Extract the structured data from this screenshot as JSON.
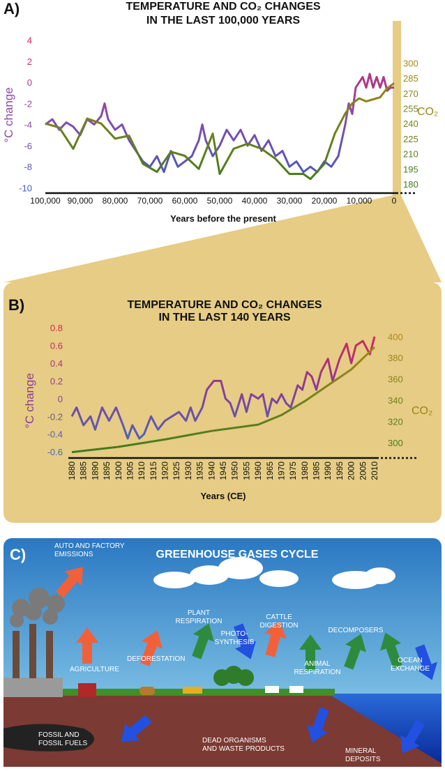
{
  "chart_data": [
    {
      "type": "line",
      "panel": "A)",
      "title": [
        "TEMPERATURE AND CO₂ CHANGES",
        "IN THE LAST 100,000 YEARS"
      ],
      "xlabel": "Years before the present",
      "ylabel": "°C change",
      "y2label": "CO₂",
      "xlim": [
        100000,
        0
      ],
      "ylim": [
        -10.5,
        4.5
      ],
      "y2lim": [
        171,
        328
      ],
      "xticks": [
        {
          "value": 100000,
          "label": "100,000"
        },
        {
          "value": 90000,
          "label": "90,000"
        },
        {
          "value": 80000,
          "label": "80,000"
        },
        {
          "value": 70000,
          "label": "70,000"
        },
        {
          "value": 60000,
          "label": "60,000"
        },
        {
          "value": 50000,
          "label": "50,000"
        },
        {
          "value": 40000,
          "label": "40,000"
        },
        {
          "value": 30000,
          "label": "30,000"
        },
        {
          "value": 20000,
          "label": "20,000"
        },
        {
          "value": 10000,
          "label": "10,000"
        },
        0
      ],
      "yticks": [
        -10,
        -8,
        -6,
        -4,
        -2,
        0,
        2,
        4
      ],
      "y2ticks": [
        180,
        195,
        210,
        225,
        240,
        255,
        270,
        285,
        300
      ],
      "series": [
        {
          "name": "°C change",
          "color": [
            "#3b5cc4",
            "#8a4aa8",
            "#e0205a"
          ],
          "x": [
            100000,
            98000,
            96000,
            94000,
            92000,
            90000,
            88000,
            86000,
            84000,
            83000,
            82000,
            80000,
            78000,
            76000,
            74000,
            72000,
            70000,
            68000,
            66000,
            64000,
            62000,
            60000,
            58000,
            56000,
            55000,
            54000,
            52000,
            50000,
            48000,
            46000,
            44000,
            42000,
            40000,
            38000,
            36000,
            34000,
            32000,
            30000,
            28000,
            26000,
            24000,
            22000,
            20000,
            18000,
            16000,
            14000,
            13000,
            12000,
            11000,
            10000,
            9000,
            8000,
            7000,
            6000,
            5000,
            4000,
            3000,
            2000,
            1000,
            0
          ],
          "values": [
            -4,
            -3.5,
            -4.5,
            -3.8,
            -4.2,
            -5,
            -3.5,
            -4,
            -3.2,
            -2,
            -3.5,
            -4.5,
            -4,
            -5.5,
            -6.5,
            -7.5,
            -8,
            -7,
            -8.5,
            -6.5,
            -8,
            -7.5,
            -7,
            -5.5,
            -4,
            -5.5,
            -7,
            -6,
            -4.5,
            -5.5,
            -4.5,
            -6,
            -5,
            -6.5,
            -5.5,
            -7,
            -6.5,
            -8,
            -7.5,
            -8.5,
            -8,
            -8.5,
            -7.5,
            -8,
            -7,
            -4,
            -2,
            -3,
            -0.5,
            0,
            0.5,
            -0.5,
            0.8,
            -0.5,
            0.5,
            -0.5,
            0.5,
            -0.8,
            -0.5,
            -0.5
          ]
        },
        {
          "name": "CO₂",
          "axis": "y2",
          "color": [
            "#3a7a1e",
            "#c08a1a"
          ],
          "x": [
            100000,
            96000,
            92000,
            88000,
            84000,
            80000,
            76000,
            72000,
            68000,
            64000,
            60000,
            56000,
            52000,
            50000,
            46000,
            42000,
            38000,
            34000,
            30000,
            26000,
            24000,
            20000,
            17000,
            14000,
            12000,
            10000,
            8000,
            6000,
            4000,
            2000,
            0
          ],
          "values": [
            240,
            236,
            215,
            245,
            240,
            225,
            228,
            200,
            192,
            212,
            208,
            195,
            230,
            190,
            215,
            220,
            215,
            205,
            190,
            190,
            185,
            200,
            230,
            250,
            260,
            265,
            262,
            264,
            266,
            275,
            280
          ]
        }
      ]
    },
    {
      "type": "line",
      "panel": "B)",
      "title": [
        "TEMPERATURE AND CO₂ CHANGES",
        "IN THE LAST 140 YEARS"
      ],
      "xlabel": "Years (CE)",
      "ylabel": "°C change",
      "y2label": "CO₂",
      "xlim": [
        1880,
        2010
      ],
      "ylim": [
        -0.67,
        0.88
      ],
      "y2lim": [
        285.5,
        415
      ],
      "xticks": [
        1880,
        1885,
        1890,
        1895,
        1900,
        1905,
        1910,
        1915,
        1920,
        1925,
        1930,
        1935,
        1940,
        1945,
        1950,
        1955,
        1960,
        1965,
        1970,
        1975,
        1980,
        1985,
        1990,
        1995,
        2000,
        2005,
        2010
      ],
      "yticks": [
        -0.6,
        -0.4,
        -0.2,
        0,
        0.2,
        0.4,
        0.6,
        0.8
      ],
      "y2ticks": [
        300,
        320,
        340,
        360,
        380,
        400
      ],
      "series": [
        {
          "name": "°C change",
          "color": [
            "#3a6fc0",
            "#8a3d9a",
            "#e8204a"
          ],
          "x": [
            1880,
            1882,
            1885,
            1888,
            1890,
            1893,
            1896,
            1899,
            1902,
            1904,
            1906,
            1909,
            1911,
            1914,
            1917,
            1920,
            1923,
            1926,
            1929,
            1931,
            1933,
            1936,
            1938,
            1941,
            1944,
            1946,
            1948,
            1950,
            1953,
            1955,
            1957,
            1960,
            1962,
            1964,
            1966,
            1968,
            1970,
            1972,
            1974,
            1977,
            1979,
            1981,
            1983,
            1985,
            1987,
            1990,
            1992,
            1995,
            1998,
            2000,
            2002,
            2005,
            2008,
            2010
          ],
          "values": [
            -0.2,
            -0.1,
            -0.3,
            -0.2,
            -0.35,
            -0.1,
            -0.25,
            -0.1,
            -0.3,
            -0.45,
            -0.3,
            -0.45,
            -0.4,
            -0.2,
            -0.35,
            -0.25,
            -0.2,
            -0.15,
            -0.25,
            -0.1,
            -0.25,
            -0.1,
            0.1,
            0.2,
            0.2,
            0,
            -0.05,
            -0.2,
            0.05,
            -0.15,
            0.05,
            0,
            0.05,
            -0.2,
            0,
            -0.05,
            0.05,
            -0.05,
            -0.1,
            0.15,
            0.1,
            0.3,
            0.25,
            0.1,
            0.3,
            0.45,
            0.2,
            0.45,
            0.62,
            0.4,
            0.6,
            0.65,
            0.5,
            0.7
          ]
        },
        {
          "name": "CO₂",
          "axis": "y2",
          "color": [
            "#3a7a1e",
            "#c08a1a"
          ],
          "x": [
            1880,
            1900,
            1920,
            1940,
            1960,
            1970,
            1980,
            1990,
            2000,
            2010
          ],
          "values": [
            291,
            296,
            303,
            311,
            317,
            326,
            339,
            354,
            369,
            390
          ]
        }
      ]
    }
  ],
  "diagram": {
    "panel": "C)",
    "title": "GREENHOUSE GASES CYCLE",
    "labels": [
      [
        "AUTO AND FACTORY",
        "EMISSIONS"
      ],
      [
        "AGRICULTURE"
      ],
      [
        "DEFORESTATION"
      ],
      [
        "PLANT",
        "RESPIRATION"
      ],
      [
        "PHOTO-",
        "SYNTHESIS"
      ],
      [
        "CATTLE",
        "DIGESTION"
      ],
      [
        "ANIMAL",
        "RESPIRATION"
      ],
      [
        "DECOMPOSERS"
      ],
      [
        "OCEAN",
        "EXCHANGE"
      ],
      [
        "FOSSIL AND",
        "FOSSIL FUELS"
      ],
      [
        "DEAD ORGANISMS",
        "AND WASTE PRODUCTS"
      ],
      [
        "MINERAL",
        "DEPOSITS"
      ]
    ]
  }
}
